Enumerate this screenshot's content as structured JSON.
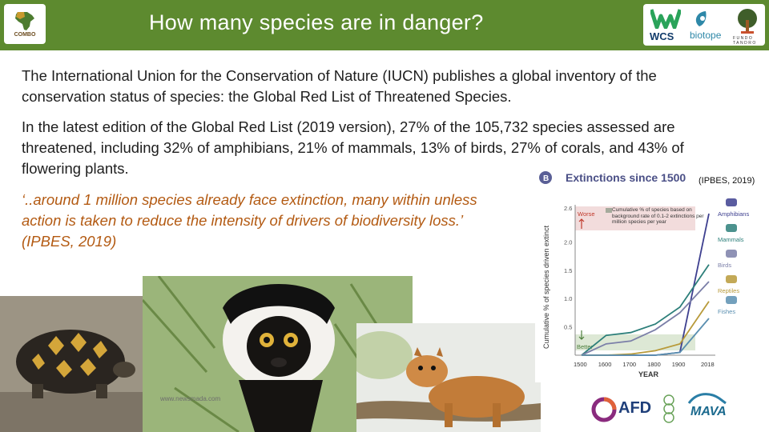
{
  "header": {
    "title": "How many species are in danger?",
    "left_logo_text": "COMBO",
    "right_logos": {
      "wcs": "WCS",
      "biotope": "biotope",
      "fundo": "FUNDO TANDRO"
    }
  },
  "content": {
    "paragraph1": "The International Union for the Conservation of Nature (IUCN) publishes a global inventory of the conservation status of species: the Global Red List of Threatened Species.",
    "paragraph2": "In the latest edition of the Global Red List (2019 version), 27% of the 105,732 species assessed are threatened, including 32% of amphibians, 21% of mammals, 13% of birds, 27% of corals, and 43% of flowering plants.",
    "quote": "‘..around 1 million species already face extinction, many within unless action is taken to reduce the intensity of drivers of biodiversity loss.’ (IPBES, 2019)",
    "citation": "(IPBES, 2019)"
  },
  "photos": {
    "lemur_watermark": "www.newsmada.com"
  },
  "chart_data": {
    "type": "line",
    "panel_label": "B",
    "title": "Extinctions since 1500",
    "xlabel": "YEAR",
    "ylabel": "Cumulative % of species driven extinct",
    "x": [
      1500,
      1600,
      1700,
      1800,
      1900,
      2018
    ],
    "x_tick_labels": [
      "1500",
      "1600",
      "1700",
      "1800",
      "1900",
      "2018"
    ],
    "y_ticks": [
      "0.5",
      "1.0",
      "1.5",
      "2.0",
      "2.6"
    ],
    "ylim": [
      0,
      2.6
    ],
    "grid": false,
    "annotations": {
      "worse": "Worse",
      "better": "Better",
      "background_rate": "Cumulative % of species based on background rate of 0.1-2 extinctions per million species per year"
    },
    "series": [
      {
        "name": "Amphibians",
        "color": "#3d3f8f",
        "values": [
          0,
          0,
          0,
          0,
          0.05,
          2.5
        ]
      },
      {
        "name": "Mammals",
        "color": "#2d7f7a",
        "values": [
          0,
          0.35,
          0.4,
          0.55,
          0.85,
          1.6
        ]
      },
      {
        "name": "Birds",
        "color": "#7b7fa8",
        "values": [
          0,
          0.2,
          0.25,
          0.45,
          0.75,
          1.3
        ]
      },
      {
        "name": "Reptiles",
        "color": "#b89a3a",
        "values": [
          0,
          0,
          0.02,
          0.08,
          0.2,
          0.95
        ]
      },
      {
        "name": "Fishes",
        "color": "#5a8fb0",
        "values": [
          0,
          0,
          0,
          0,
          0.05,
          0.65
        ]
      }
    ]
  },
  "footer_logos": {
    "afd": "AFD",
    "mava": "MAVA"
  }
}
